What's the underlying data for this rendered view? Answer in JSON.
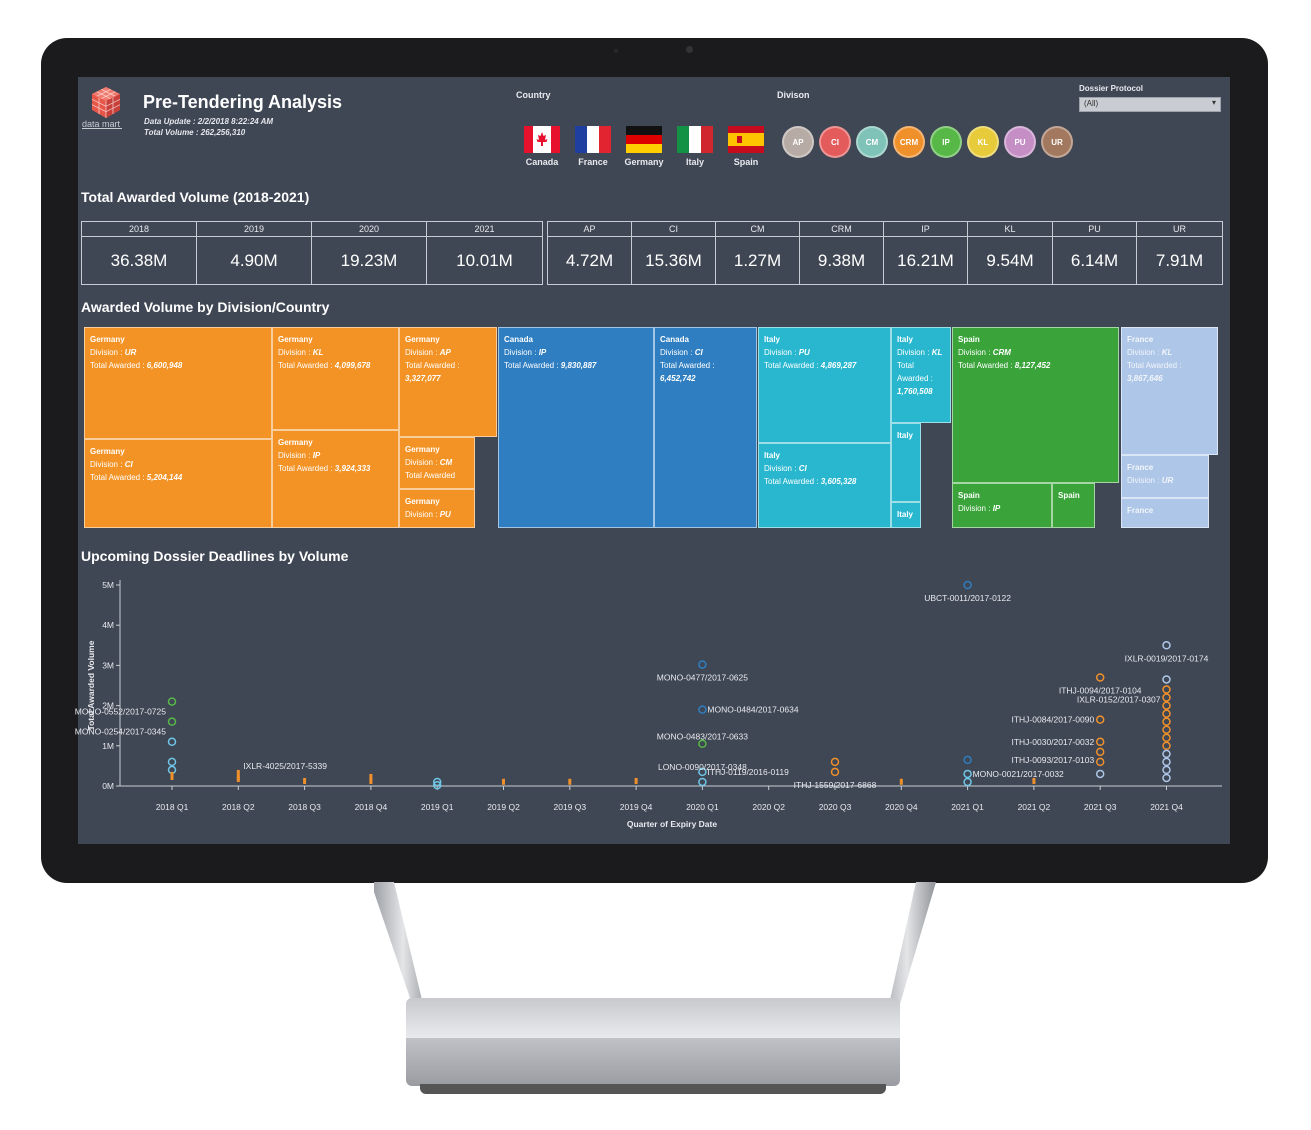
{
  "header": {
    "logo_text": "data mart",
    "title": "Pre-Tendering Analysis",
    "data_update": "Data Update : 2/2/2018 8:22:24 AM",
    "total_volume": "Total Volume : 262,256,310"
  },
  "country_filter": {
    "label": "Country",
    "items": [
      {
        "label": "Canada",
        "flag": "canada-flag"
      },
      {
        "label": "France",
        "flag": "france-flag"
      },
      {
        "label": "Germany",
        "flag": "germany-flag"
      },
      {
        "label": "Italy",
        "flag": "italy-flag"
      },
      {
        "label": "Spain",
        "flag": "spain-flag"
      }
    ]
  },
  "division_filter": {
    "label": "Divison",
    "items": [
      {
        "label": "AP",
        "color": "#b7aba5"
      },
      {
        "label": "CI",
        "color": "#e35b5b"
      },
      {
        "label": "CM",
        "color": "#7fc3b8"
      },
      {
        "label": "CRM",
        "color": "#f0902a"
      },
      {
        "label": "IP",
        "color": "#57b847"
      },
      {
        "label": "KL",
        "color": "#e8cb3a"
      },
      {
        "label": "PU",
        "color": "#c58fc6"
      },
      {
        "label": "UR",
        "color": "#a2795f"
      }
    ]
  },
  "dossier": {
    "label": "Dossier Protocol",
    "value": "(All)"
  },
  "kpi": {
    "title": "Total Awarded Volume (2018-2021)",
    "years": [
      {
        "label": "2018",
        "value": "36.38M"
      },
      {
        "label": "2019",
        "value": "4.90M"
      },
      {
        "label": "2020",
        "value": "19.23M"
      },
      {
        "label": "2021",
        "value": "10.01M"
      }
    ],
    "divisions": [
      {
        "label": "AP",
        "value": "4.72M"
      },
      {
        "label": "CI",
        "value": "15.36M"
      },
      {
        "label": "CM",
        "value": "1.27M"
      },
      {
        "label": "CRM",
        "value": "9.38M"
      },
      {
        "label": "IP",
        "value": "16.21M"
      },
      {
        "label": "KL",
        "value": "9.54M"
      },
      {
        "label": "PU",
        "value": "6.14M"
      },
      {
        "label": "UR",
        "value": "7.91M"
      }
    ]
  },
  "treemap": {
    "title": "Awarded Volume by Division/Country",
    "prefix_division": "Division : ",
    "prefix_total": "Total Awarded : ",
    "colors": {
      "Germany": "#f39325",
      "Canada": "#2f7ec1",
      "Italy": "#28b7cf",
      "Spain": "#3aa43a",
      "France": "#aec7e8"
    },
    "tiles": [
      {
        "country": "Germany",
        "division": "UR",
        "total": "6,600,948"
      },
      {
        "country": "Germany",
        "division": "KL",
        "total": "4,099,678"
      },
      {
        "country": "Germany",
        "division": "AP",
        "total": "3,327,077"
      },
      {
        "country": "Germany",
        "division": "CI",
        "total": "5,204,144"
      },
      {
        "country": "Germany",
        "division": "IP",
        "total": "3,924,333"
      },
      {
        "country": "Germany",
        "division": "CM",
        "total": ""
      },
      {
        "country": "Germany",
        "division": "PU",
        "total": ""
      },
      {
        "country": "Canada",
        "division": "IP",
        "total": "9,830,887"
      },
      {
        "country": "Canada",
        "division": "CI",
        "total": "6,452,742"
      },
      {
        "country": "Italy",
        "division": "PU",
        "total": "4,869,287"
      },
      {
        "country": "Italy",
        "division": "KL",
        "total": "1,760,508"
      },
      {
        "country": "Italy",
        "division": "CI",
        "total": "3,605,328"
      },
      {
        "country": "Italy",
        "division": "",
        "total": ""
      },
      {
        "country": "Italy",
        "division": "",
        "total": ""
      },
      {
        "country": "Spain",
        "division": "CRM",
        "total": "8,127,452"
      },
      {
        "country": "Spain",
        "division": "IP",
        "total": ""
      },
      {
        "country": "Spain",
        "division": "",
        "total": ""
      },
      {
        "country": "France",
        "division": "KL",
        "total": "3,867,646"
      },
      {
        "country": "France",
        "division": "UR",
        "total": ""
      },
      {
        "country": "France",
        "division": "",
        "total": ""
      }
    ]
  },
  "chart_data": {
    "type": "scatter",
    "title": "Upcoming Dossier Deadlines by Volume",
    "xlabel": "Quarter of Expiry Date",
    "ylabel": "Total Awarded Volume",
    "categories": [
      "2018 Q1",
      "2018 Q2",
      "2018 Q3",
      "2018 Q4",
      "2019 Q1",
      "2019 Q2",
      "2019 Q3",
      "2019 Q4",
      "2020 Q1",
      "2020 Q2",
      "2020 Q3",
      "2020 Q4",
      "2021 Q1",
      "2021 Q2",
      "2021 Q3",
      "2021 Q4"
    ],
    "yticks": [
      "0M",
      "1M",
      "2M",
      "3M",
      "4M",
      "5M"
    ],
    "ylim": [
      0,
      5
    ],
    "points": [
      {
        "x": "2018 Q1",
        "y": 2.1,
        "color": "#57b847"
      },
      {
        "x": "2018 Q1",
        "y": 1.6,
        "color": "#57b847"
      },
      {
        "x": "2018 Q1",
        "y": 1.1,
        "color": "#6ec6e6"
      },
      {
        "x": "2018 Q1",
        "y": 0.6,
        "color": "#6ec6e6"
      },
      {
        "x": "2018 Q1",
        "y": 0.4,
        "color": "#6ec6e6"
      },
      {
        "x": "2018 Q1",
        "y": 0.2,
        "color": "#f0902a"
      },
      {
        "x": "2018 Q2",
        "y": 0.25,
        "color": "#f0902a"
      },
      {
        "x": "2018 Q2",
        "y": 0.1,
        "color": "#f0902a"
      },
      {
        "x": "2018 Q3",
        "y": 0.05,
        "color": "#f0902a"
      },
      {
        "x": "2018 Q4",
        "y": 0.15,
        "color": "#f0902a"
      },
      {
        "x": "2018 Q4",
        "y": 0.05,
        "color": "#f0902a"
      },
      {
        "x": "2019 Q1",
        "y": 0.1,
        "color": "#6ec6e6"
      },
      {
        "x": "2019 Q1",
        "y": 0.02,
        "color": "#6ec6e6"
      },
      {
        "x": "2019 Q2",
        "y": 0.03,
        "color": "#f0902a"
      },
      {
        "x": "2019 Q3",
        "y": 0.03,
        "color": "#f0902a"
      },
      {
        "x": "2019 Q4",
        "y": 0.05,
        "color": "#f0902a"
      },
      {
        "x": "2020 Q1",
        "y": 3.02,
        "color": "#2f7ec1"
      },
      {
        "x": "2020 Q1",
        "y": 1.9,
        "color": "#2f7ec1"
      },
      {
        "x": "2020 Q1",
        "y": 1.05,
        "color": "#57b847"
      },
      {
        "x": "2020 Q1",
        "y": 0.35,
        "color": "#6ec6e6"
      },
      {
        "x": "2020 Q1",
        "y": 0.1,
        "color": "#6ec6e6"
      },
      {
        "x": "2020 Q3",
        "y": 0.6,
        "color": "#f0902a"
      },
      {
        "x": "2020 Q3",
        "y": 0.35,
        "color": "#f0902a"
      },
      {
        "x": "2020 Q4",
        "y": 0.03,
        "color": "#f0902a"
      },
      {
        "x": "2021 Q1",
        "y": 5.0,
        "color": "#2f7ec1"
      },
      {
        "x": "2021 Q1",
        "y": 0.65,
        "color": "#2f7ec1"
      },
      {
        "x": "2021 Q1",
        "y": 0.3,
        "color": "#6ec6e6"
      },
      {
        "x": "2021 Q1",
        "y": 0.1,
        "color": "#6ec6e6"
      },
      {
        "x": "2021 Q2",
        "y": 0.05,
        "color": "#f0902a"
      },
      {
        "x": "2021 Q3",
        "y": 2.7,
        "color": "#f0902a"
      },
      {
        "x": "2021 Q3",
        "y": 1.65,
        "color": "#f0902a"
      },
      {
        "x": "2021 Q3",
        "y": 1.1,
        "color": "#f0902a"
      },
      {
        "x": "2021 Q3",
        "y": 0.85,
        "color": "#f0902a"
      },
      {
        "x": "2021 Q3",
        "y": 0.6,
        "color": "#f0902a"
      },
      {
        "x": "2021 Q3",
        "y": 0.3,
        "color": "#aec7e8"
      },
      {
        "x": "2021 Q4",
        "y": 3.5,
        "color": "#aec7e8"
      },
      {
        "x": "2021 Q4",
        "y": 2.65,
        "color": "#aec7e8"
      },
      {
        "x": "2021 Q4",
        "y": 2.4,
        "color": "#f0902a"
      },
      {
        "x": "2021 Q4",
        "y": 2.2,
        "color": "#f0902a"
      },
      {
        "x": "2021 Q4",
        "y": 2.0,
        "color": "#f0902a"
      },
      {
        "x": "2021 Q4",
        "y": 1.8,
        "color": "#f0902a"
      },
      {
        "x": "2021 Q4",
        "y": 1.6,
        "color": "#f0902a"
      },
      {
        "x": "2021 Q4",
        "y": 1.4,
        "color": "#f0902a"
      },
      {
        "x": "2021 Q4",
        "y": 1.2,
        "color": "#f0902a"
      },
      {
        "x": "2021 Q4",
        "y": 1.0,
        "color": "#f0902a"
      },
      {
        "x": "2021 Q4",
        "y": 0.8,
        "color": "#aec7e8"
      },
      {
        "x": "2021 Q4",
        "y": 0.6,
        "color": "#aec7e8"
      },
      {
        "x": "2021 Q4",
        "y": 0.4,
        "color": "#aec7e8"
      },
      {
        "x": "2021 Q4",
        "y": 0.2,
        "color": "#aec7e8"
      }
    ],
    "annotations": [
      {
        "text": "UBCT-0011/2017-0122",
        "x": "2021 Q1",
        "y": 5.0,
        "anchor": "below"
      },
      {
        "text": "IXLR-0019/2017-0174",
        "x": "2021 Q4",
        "y": 3.5,
        "anchor": "below"
      },
      {
        "text": "ITHJ-0094/2017-0104",
        "x": "2021 Q3",
        "y": 2.7,
        "anchor": "below"
      },
      {
        "text": "IXLR-0152/2017-0307",
        "x": "2021 Q4",
        "y": 2.15,
        "anchor": "left"
      },
      {
        "text": "ITHJ-0084/2017-0090",
        "x": "2021 Q3",
        "y": 1.65,
        "anchor": "left"
      },
      {
        "text": "ITHJ-0030/2017-0032",
        "x": "2021 Q3",
        "y": 1.1,
        "anchor": "left"
      },
      {
        "text": "ITHJ-0093/2017-0103",
        "x": "2021 Q3",
        "y": 0.65,
        "anchor": "left"
      },
      {
        "text": "MONO-0021/2017-0032",
        "x": "2021 Q1",
        "y": 0.3,
        "anchor": "right"
      },
      {
        "text": "MONO-0477/2017-0625",
        "x": "2020 Q1",
        "y": 3.02,
        "anchor": "below"
      },
      {
        "text": "MONO-0484/2017-0634",
        "x": "2020 Q1",
        "y": 1.9,
        "anchor": "right"
      },
      {
        "text": "MONO-0483/2017-0633",
        "x": "2020 Q1",
        "y": 1.55,
        "anchor": "below"
      },
      {
        "text": "LONO-0090/2017-0348",
        "x": "2020 Q1",
        "y": 0.8,
        "anchor": "below"
      },
      {
        "text": "ITHJ-0119/2016-0119",
        "x": "2020 Q1",
        "y": 0.35,
        "anchor": "right"
      },
      {
        "text": "ITHJ-1559/2017-6868",
        "x": "2020 Q3",
        "y": 0.35,
        "anchor": "below"
      },
      {
        "text": "MONO-0552/2017-0725",
        "x": "2018 Q1",
        "y": 1.85,
        "anchor": "left"
      },
      {
        "text": "MONO-0254/2017-0345",
        "x": "2018 Q1",
        "y": 1.35,
        "anchor": "left"
      },
      {
        "text": "IXLR-4025/2017-5339",
        "x": "2018 Q2",
        "y": 0.5,
        "anchor": "right"
      }
    ]
  }
}
